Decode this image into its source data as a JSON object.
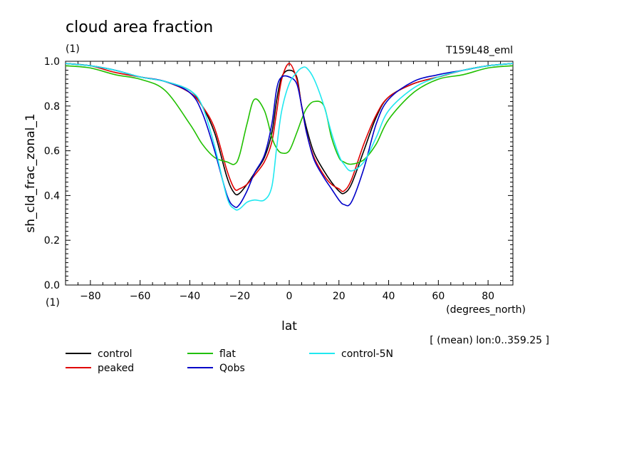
{
  "header": {
    "title": "cloud area fraction",
    "unit_top": "(1)",
    "run_label": "T159L48_eml"
  },
  "axes": {
    "ylabel": "sh_cld_frac_zonal_1",
    "xlabel": "lat",
    "xunit": "(degrees_north)",
    "yunit_bottom": "(1)",
    "note": "[ (mean) lon:0..359.25 ]"
  },
  "colors": {
    "control": "#000000",
    "peaked": "#e00000",
    "flat": "#20c000",
    "Qobs": "#0000c8",
    "control-5N": "#20e8f0"
  },
  "chart_data": {
    "type": "line",
    "title": "cloud area fraction",
    "xlabel": "lat",
    "ylabel": "sh_cld_frac_zonal_1",
    "xlim": [
      -90,
      90
    ],
    "ylim": [
      0.0,
      1.0
    ],
    "xticks": [
      -80,
      -60,
      -40,
      -20,
      0,
      20,
      40,
      60,
      80
    ],
    "yticks": [
      0.0,
      0.2,
      0.4,
      0.6,
      0.8,
      1.0
    ],
    "legend_position": "bottom",
    "grid": false,
    "x": [
      -90,
      -80,
      -70,
      -60,
      -50,
      -40,
      -35,
      -30,
      -25,
      -22,
      -20,
      -17,
      -14,
      -10,
      -7,
      -5,
      -3,
      0,
      3,
      5,
      7,
      10,
      14,
      17,
      20,
      22,
      25,
      30,
      35,
      40,
      50,
      60,
      70,
      80,
      90
    ],
    "series": [
      {
        "name": "control",
        "values": [
          0.99,
          0.98,
          0.96,
          0.93,
          0.91,
          0.87,
          0.8,
          0.68,
          0.48,
          0.41,
          0.41,
          0.45,
          0.5,
          0.57,
          0.68,
          0.83,
          0.93,
          0.96,
          0.93,
          0.8,
          0.7,
          0.59,
          0.51,
          0.46,
          0.42,
          0.41,
          0.45,
          0.6,
          0.75,
          0.84,
          0.9,
          0.93,
          0.96,
          0.98,
          0.99
        ]
      },
      {
        "name": "peaked",
        "values": [
          0.99,
          0.98,
          0.95,
          0.93,
          0.91,
          0.86,
          0.8,
          0.7,
          0.51,
          0.43,
          0.43,
          0.45,
          0.49,
          0.55,
          0.64,
          0.78,
          0.92,
          0.99,
          0.92,
          0.8,
          0.68,
          0.57,
          0.49,
          0.45,
          0.43,
          0.42,
          0.47,
          0.63,
          0.76,
          0.84,
          0.9,
          0.93,
          0.96,
          0.98,
          0.99
        ]
      },
      {
        "name": "flat",
        "values": [
          0.98,
          0.97,
          0.94,
          0.92,
          0.87,
          0.72,
          0.63,
          0.57,
          0.55,
          0.54,
          0.58,
          0.72,
          0.83,
          0.78,
          0.66,
          0.61,
          0.59,
          0.6,
          0.68,
          0.74,
          0.79,
          0.82,
          0.8,
          0.66,
          0.57,
          0.55,
          0.54,
          0.56,
          0.63,
          0.74,
          0.86,
          0.92,
          0.94,
          0.97,
          0.98
        ]
      },
      {
        "name": "Qobs",
        "values": [
          0.99,
          0.98,
          0.96,
          0.93,
          0.91,
          0.86,
          0.77,
          0.6,
          0.4,
          0.35,
          0.36,
          0.42,
          0.5,
          0.58,
          0.72,
          0.88,
          0.93,
          0.93,
          0.9,
          0.8,
          0.68,
          0.56,
          0.48,
          0.43,
          0.38,
          0.36,
          0.37,
          0.52,
          0.72,
          0.83,
          0.91,
          0.94,
          0.96,
          0.98,
          0.99
        ]
      },
      {
        "name": "control-5N",
        "values": [
          0.99,
          0.98,
          0.96,
          0.93,
          0.91,
          0.87,
          0.8,
          0.62,
          0.39,
          0.34,
          0.34,
          0.37,
          0.38,
          0.38,
          0.44,
          0.62,
          0.78,
          0.9,
          0.95,
          0.97,
          0.97,
          0.92,
          0.8,
          0.68,
          0.58,
          0.54,
          0.51,
          0.55,
          0.66,
          0.78,
          0.88,
          0.93,
          0.96,
          0.98,
          0.99
        ]
      }
    ]
  }
}
